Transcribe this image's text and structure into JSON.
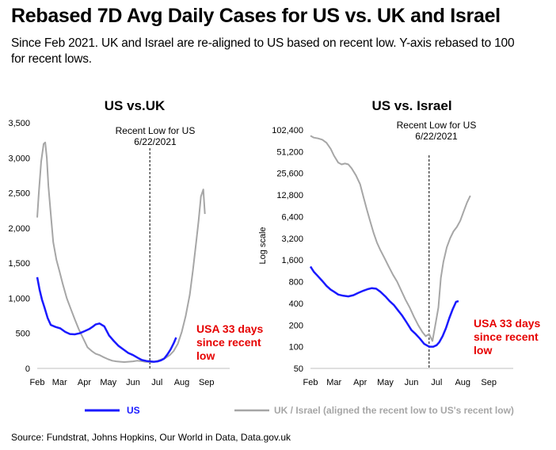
{
  "title": "Rebased 7D Avg Daily Cases for US vs. UK and Israel",
  "subtitle": "Since Feb 2021. UK and Israel are re-aligned to US based on recent low. Y-axis rebased to 100 for recent lows.",
  "source": "Source: Fundstrat, Johns Hopkins, Our World in Data, Data.gov.uk",
  "legend": {
    "us_label": "US",
    "uk_label": "UK / Israel (aligned the recent low to US's recent low)"
  },
  "colors": {
    "us": "#1a1aff",
    "uk_israel": "#a6a6a6",
    "annotation": "#e60000"
  },
  "chart_data": [
    {
      "type": "line",
      "title": "US vs.UK",
      "ylabel": "",
      "xlabel": "",
      "y_scale": "linear",
      "ylim": [
        0,
        3500
      ],
      "y_ticks": [
        0,
        500,
        1000,
        1500,
        2000,
        2500,
        3000,
        3500
      ],
      "y_tick_labels": [
        "0",
        "500",
        "1,000",
        "1,500",
        "2,000",
        "2,500",
        "3,000",
        "3,500"
      ],
      "x_tick_labels": [
        "Feb",
        "Mar",
        "Apr",
        "May",
        "Jun",
        "Jul",
        "Aug",
        "Sep"
      ],
      "xlim": [
        "2021-02-01",
        "2021-09-30"
      ],
      "vline": {
        "x": "2021-06-22",
        "label_line1": "Recent Low for US",
        "label_line2": "6/22/2021"
      },
      "annotation": [
        "USA 33 days",
        "since recent",
        "low"
      ],
      "series": [
        {
          "name": "US",
          "x": [
            "2021-02-01",
            "2021-02-04",
            "2021-02-07",
            "2021-02-10",
            "2021-02-14",
            "2021-02-18",
            "2021-02-24",
            "2021-03-02",
            "2021-03-08",
            "2021-03-14",
            "2021-03-20",
            "2021-03-26",
            "2021-04-01",
            "2021-04-07",
            "2021-04-11",
            "2021-04-15",
            "2021-04-20",
            "2021-04-26",
            "2021-05-02",
            "2021-05-08",
            "2021-05-14",
            "2021-05-20",
            "2021-05-26",
            "2021-06-01",
            "2021-06-07",
            "2021-06-12",
            "2021-06-18",
            "2021-06-22",
            "2021-06-27",
            "2021-07-02",
            "2021-07-06",
            "2021-07-10",
            "2021-07-14",
            "2021-07-18",
            "2021-07-22",
            "2021-07-25"
          ],
          "values": [
            1300,
            1120,
            980,
            870,
            720,
            620,
            590,
            570,
            520,
            490,
            485,
            500,
            530,
            560,
            590,
            625,
            640,
            600,
            470,
            390,
            320,
            270,
            220,
            190,
            150,
            120,
            105,
            100,
            95,
            100,
            115,
            140,
            200,
            270,
            360,
            440
          ]
        },
        {
          "name": "UK",
          "x": [
            "2021-02-01",
            "2021-02-03",
            "2021-02-06",
            "2021-02-09",
            "2021-02-11",
            "2021-02-13",
            "2021-02-15",
            "2021-02-18",
            "2021-02-21",
            "2021-02-25",
            "2021-03-01",
            "2021-03-05",
            "2021-03-10",
            "2021-03-15",
            "2021-03-20",
            "2021-03-25",
            "2021-03-30",
            "2021-04-05",
            "2021-04-10",
            "2021-04-15",
            "2021-04-20",
            "2021-04-25",
            "2021-05-01",
            "2021-05-06",
            "2021-05-11",
            "2021-05-16",
            "2021-05-21",
            "2021-05-26",
            "2021-06-01",
            "2021-06-06",
            "2021-06-11",
            "2021-06-16",
            "2021-06-22",
            "2021-06-27",
            "2021-07-02",
            "2021-07-07",
            "2021-07-12",
            "2021-07-17",
            "2021-07-22",
            "2021-07-27",
            "2021-08-01",
            "2021-08-06",
            "2021-08-11",
            "2021-08-15",
            "2021-08-19",
            "2021-08-22",
            "2021-08-25",
            "2021-08-28",
            "2021-08-30"
          ],
          "values": [
            2150,
            2500,
            2950,
            3200,
            3220,
            3000,
            2600,
            2200,
            1800,
            1550,
            1380,
            1200,
            1000,
            850,
            700,
            560,
            440,
            300,
            250,
            210,
            190,
            160,
            130,
            110,
            100,
            95,
            90,
            95,
            100,
            110,
            105,
            95,
            90,
            90,
            110,
            130,
            150,
            190,
            250,
            350,
            520,
            750,
            1050,
            1400,
            1800,
            2100,
            2450,
            2550,
            2200
          ]
        }
      ]
    },
    {
      "type": "line",
      "title": "US vs. Israel",
      "ylabel": "Log scale",
      "xlabel": "",
      "y_scale": "log2",
      "ylim": [
        50,
        102400
      ],
      "y_ticks": [
        50,
        100,
        200,
        400,
        800,
        1600,
        3200,
        6400,
        12800,
        25600,
        51200,
        102400
      ],
      "y_tick_labels": [
        "50",
        "100",
        "200",
        "400",
        "800",
        "1,600",
        "3,200",
        "6,400",
        "12,800",
        "25,600",
        "51,200",
        "102,400"
      ],
      "x_tick_labels": [
        "Feb",
        "Mar",
        "Apr",
        "May",
        "Jun",
        "Jul",
        "Aug",
        "Sep"
      ],
      "xlim": [
        "2021-02-01",
        "2021-09-30"
      ],
      "vline": {
        "x": "2021-06-22",
        "label_line1": "Recent Low for US",
        "label_line2": "6/22/2021"
      },
      "annotation": [
        "USA 33 days",
        "since recent",
        "low"
      ],
      "series": [
        {
          "name": "US",
          "x": [
            "2021-02-01",
            "2021-02-05",
            "2021-02-10",
            "2021-02-15",
            "2021-02-20",
            "2021-02-25",
            "2021-03-01",
            "2021-03-06",
            "2021-03-12",
            "2021-03-18",
            "2021-03-24",
            "2021-03-30",
            "2021-04-05",
            "2021-04-10",
            "2021-04-15",
            "2021-04-20",
            "2021-04-25",
            "2021-05-01",
            "2021-05-06",
            "2021-05-11",
            "2021-05-16",
            "2021-05-21",
            "2021-05-26",
            "2021-06-01",
            "2021-06-06",
            "2021-06-11",
            "2021-06-16",
            "2021-06-22",
            "2021-06-27",
            "2021-07-01",
            "2021-07-04",
            "2021-07-08",
            "2021-07-12",
            "2021-07-16",
            "2021-07-20",
            "2021-07-24",
            "2021-07-27"
          ],
          "values": [
            1300,
            1100,
            950,
            820,
            700,
            620,
            580,
            530,
            510,
            500,
            520,
            560,
            600,
            630,
            650,
            640,
            580,
            500,
            430,
            380,
            320,
            270,
            220,
            170,
            150,
            130,
            110,
            100,
            100,
            105,
            115,
            140,
            180,
            250,
            330,
            420,
            430
          ]
        },
        {
          "name": "Israel",
          "x": [
            "2021-02-01",
            "2021-02-05",
            "2021-02-10",
            "2021-02-15",
            "2021-02-20",
            "2021-02-25",
            "2021-03-01",
            "2021-03-06",
            "2021-03-10",
            "2021-03-14",
            "2021-03-18",
            "2021-03-22",
            "2021-03-27",
            "2021-04-01",
            "2021-04-05",
            "2021-04-09",
            "2021-04-13",
            "2021-04-17",
            "2021-04-21",
            "2021-04-25",
            "2021-04-30",
            "2021-05-05",
            "2021-05-10",
            "2021-05-15",
            "2021-05-20",
            "2021-05-25",
            "2021-05-30",
            "2021-06-04",
            "2021-06-09",
            "2021-06-14",
            "2021-06-18",
            "2021-06-22",
            "2021-06-26",
            "2021-06-30",
            "2021-07-03",
            "2021-07-06",
            "2021-07-09",
            "2021-07-13",
            "2021-07-17",
            "2021-07-21",
            "2021-07-25",
            "2021-07-29",
            "2021-08-02",
            "2021-08-06",
            "2021-08-10"
          ],
          "values": [
            85000,
            80000,
            78000,
            75000,
            68000,
            56000,
            45000,
            36000,
            34000,
            35000,
            34000,
            30000,
            24000,
            18000,
            12000,
            8000,
            5500,
            3800,
            2800,
            2200,
            1700,
            1300,
            1000,
            800,
            600,
            450,
            350,
            260,
            200,
            160,
            140,
            150,
            120,
            220,
            350,
            900,
            1500,
            2400,
            3200,
            4000,
            4600,
            5600,
            7500,
            10000,
            12500
          ]
        }
      ]
    }
  ]
}
